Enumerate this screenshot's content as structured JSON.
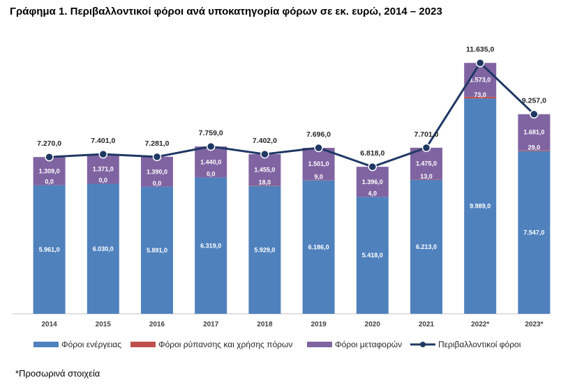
{
  "chart_data": {
    "type": "bar",
    "title": "Γράφημα 1. Περιβαλλοντικοί φόροι ανά υποκατηγορία φόρων σε εκ. ευρώ, 2014 – 2023",
    "categories": [
      "2014",
      "2015",
      "2016",
      "2017",
      "2018",
      "2019",
      "2020",
      "2021",
      "2022*",
      "2023*"
    ],
    "stacked": true,
    "series": [
      {
        "name": "Φόροι ενέργειας",
        "color": "#4f81bd",
        "values": [
          5961.0,
          6030.0,
          5891.0,
          6319.0,
          5929.0,
          6186.0,
          5418.0,
          6213.0,
          9989.0,
          7547.0
        ],
        "labels": [
          "5.961,0",
          "6.030,0",
          "5.891,0",
          "6.319,0",
          "5.929,0",
          "6.186,0",
          "5.418,0",
          "6.213,0",
          "9.989,0",
          "7.547,0"
        ]
      },
      {
        "name": "Φόροι ρύπανσης και χρήσης πόρων",
        "color": "#c0504d",
        "values": [
          0.0,
          0.0,
          0.0,
          0.0,
          18.0,
          9.0,
          4.0,
          13.0,
          73.0,
          29.0
        ],
        "labels": [
          "0,0",
          "0,0",
          "0,0",
          "0,0",
          "18,0",
          "9,0",
          "4,0",
          "13,0",
          "73,0",
          "29,0"
        ]
      },
      {
        "name": "Φόροι μεταφορών",
        "color": "#8064a2",
        "values": [
          1309.0,
          1371.0,
          1390.0,
          1440.0,
          1455.0,
          1501.0,
          1396.0,
          1475.0,
          1573.0,
          1681.0
        ],
        "labels": [
          "1.309,0",
          "1.371,0",
          "1.390,0",
          "1.440,0",
          "1.455,0",
          "1.501,0",
          "1.396,0",
          "1.475,0",
          "1.573,0",
          "1.681,0"
        ]
      },
      {
        "name": "Περιβαλλοντικοί φόροι",
        "type": "line",
        "color": "#1f3864",
        "values": [
          7270.0,
          7401.0,
          7281.0,
          7759.0,
          7402.0,
          7696.0,
          6818.0,
          7701.0,
          11635.0,
          9257.0
        ],
        "labels": [
          "7.270,0",
          "7.401,0",
          "7.281,0",
          "7.759,0",
          "7.402,0",
          "7.696,0",
          "6.818,0",
          "7.701,0",
          "11.635,0",
          "9.257,0"
        ]
      }
    ],
    "ylim": [
      0,
      13000
    ],
    "grid": false,
    "legend_position": "bottom"
  },
  "footnote": "*Προσωρινά στοιχεία"
}
